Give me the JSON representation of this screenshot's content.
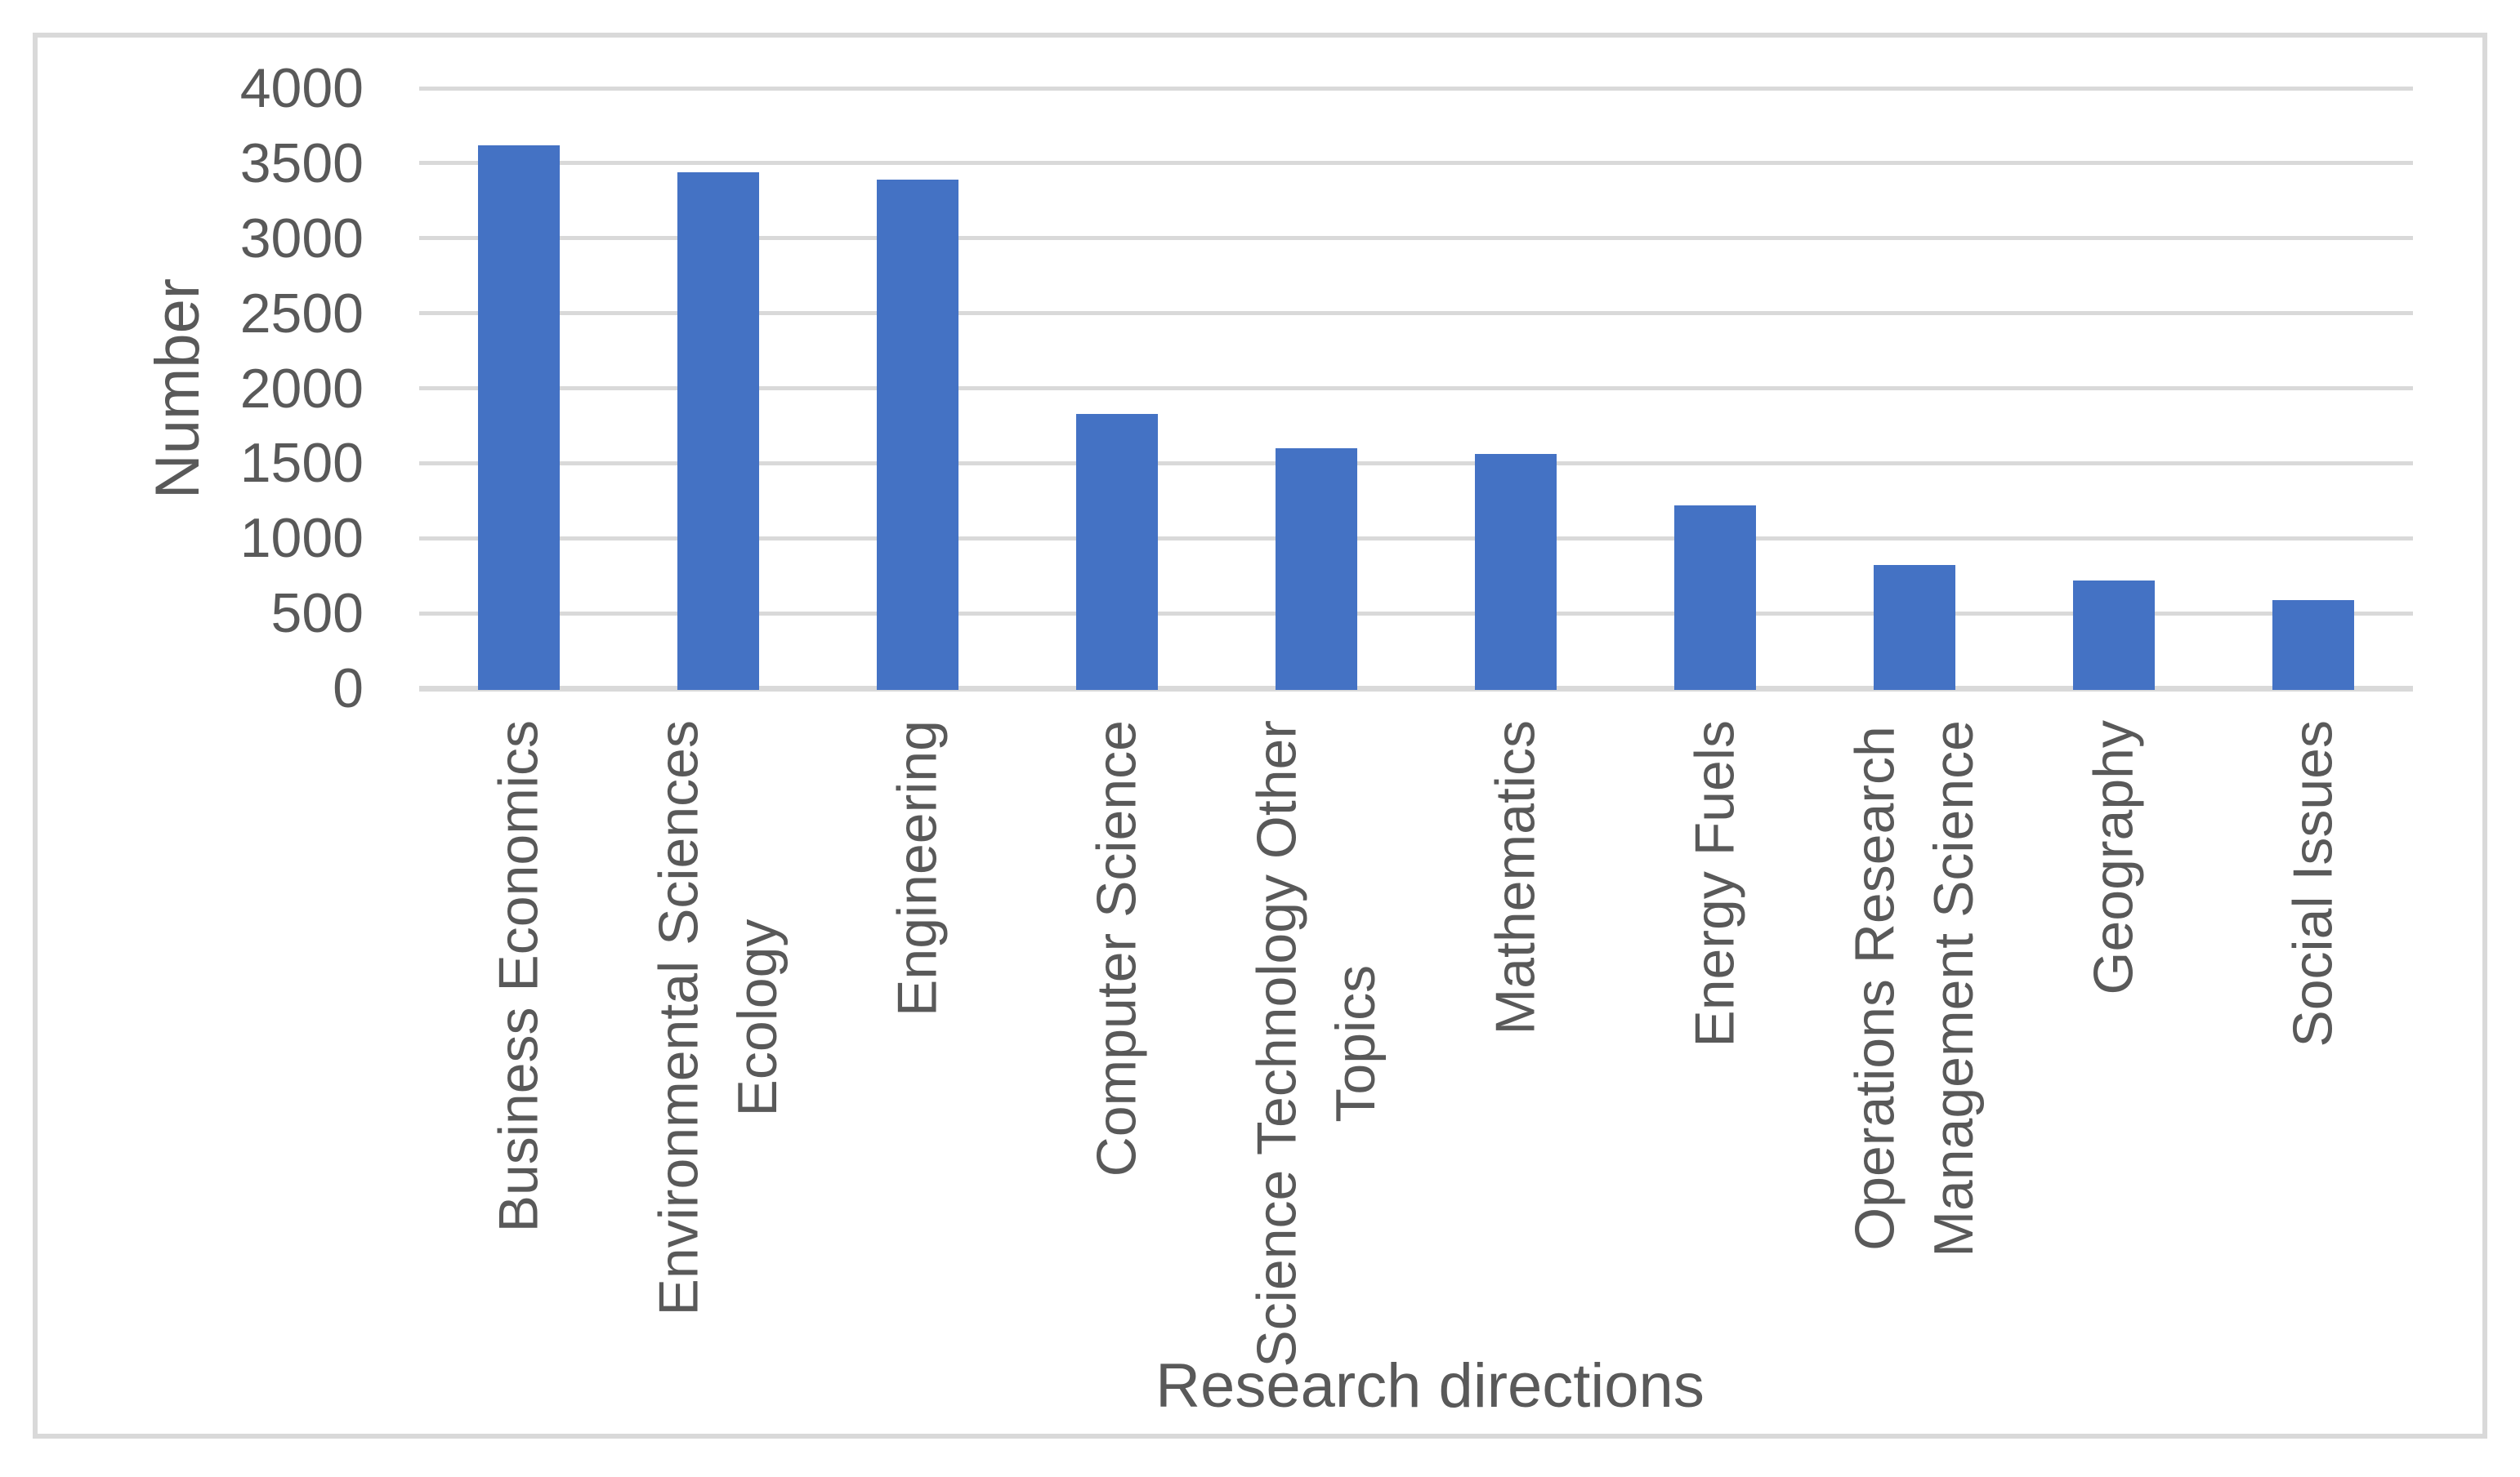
{
  "chart_data": {
    "type": "bar",
    "title": "",
    "xlabel": "Research directions",
    "ylabel": "Number",
    "categories": [
      "Business Economics",
      "Environmental Sciences\nEcology",
      "Engineering",
      "Computer Science",
      "Science Technology Other\nTopics",
      "Mathematics",
      "Energy Fuels",
      "Operations Research\nManagement Science",
      "Geography",
      "Social Issues"
    ],
    "values": [
      3620,
      3440,
      3390,
      1830,
      1600,
      1560,
      1220,
      820,
      720,
      590
    ],
    "ylim": [
      0,
      4000
    ],
    "yticks": [
      0,
      500,
      1000,
      1500,
      2000,
      2500,
      3000,
      3500,
      4000
    ],
    "grid": "horizontal-major",
    "legend": "none",
    "colors": {
      "bar": "#4472C4",
      "gridline": "#D9D9D9",
      "axis_line": "#D9D9D9",
      "text": "#595959",
      "frame_border": "#D9D9D9",
      "background": "#FFFFFF"
    }
  }
}
